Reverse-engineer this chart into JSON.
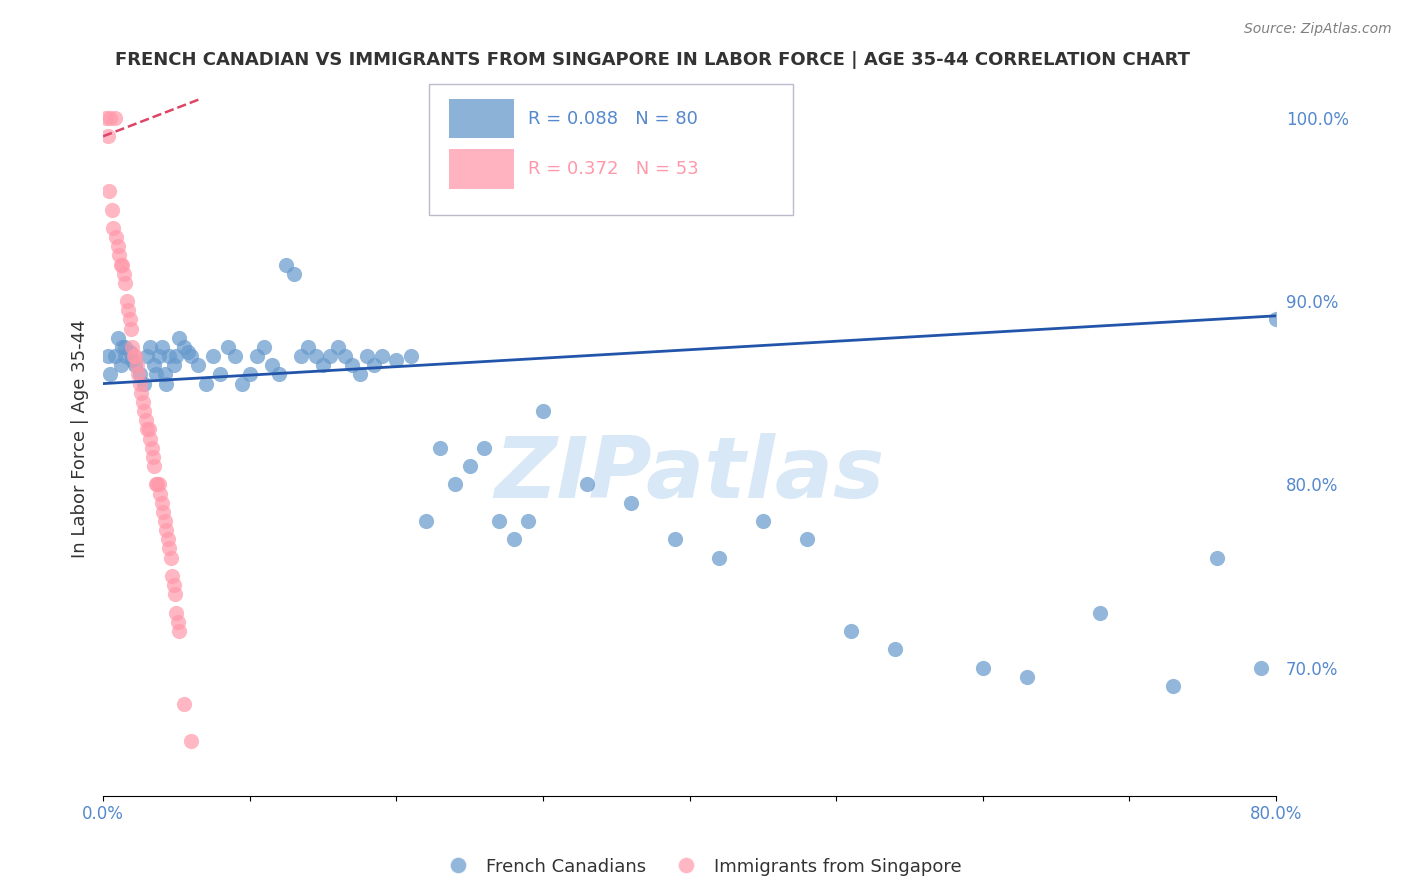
{
  "title": "FRENCH CANADIAN VS IMMIGRANTS FROM SINGAPORE IN LABOR FORCE | AGE 35-44 CORRELATION CHART",
  "source": "Source: ZipAtlas.com",
  "ylabel_left": "In Labor Force | Age 35-44",
  "xlim": [
    0.0,
    0.8
  ],
  "ylim": [
    0.63,
    1.02
  ],
  "xticks": [
    0.0,
    0.1,
    0.2,
    0.3,
    0.4,
    0.5,
    0.6,
    0.7,
    0.8
  ],
  "yticks_right": [
    0.7,
    0.8,
    0.9,
    1.0
  ],
  "yticklabels_right": [
    "70.0%",
    "80.0%",
    "90.0%",
    "100.0%"
  ],
  "legend_blue_R": "R = 0.088",
  "legend_blue_N": "N = 80",
  "legend_pink_R": "R = 0.372",
  "legend_pink_N": "N = 53",
  "blue_color": "#6699CC",
  "pink_color": "#FF99AA",
  "blue_line_color": "#2255AA",
  "pink_line_color": "#DD4466",
  "grid_color": "#CCCCDD",
  "watermark": "ZIPatlas",
  "watermark_color": "#AACCEE",
  "title_color": "#333333",
  "axis_label_color": "#333333",
  "right_axis_color": "#5588CC",
  "blue_points_x": [
    0.003,
    0.005,
    0.008,
    0.01,
    0.012,
    0.013,
    0.015,
    0.015,
    0.018,
    0.02,
    0.022,
    0.025,
    0.028,
    0.03,
    0.032,
    0.035,
    0.036,
    0.038,
    0.04,
    0.042,
    0.043,
    0.045,
    0.048,
    0.05,
    0.052,
    0.055,
    0.058,
    0.06,
    0.065,
    0.07,
    0.075,
    0.08,
    0.085,
    0.09,
    0.095,
    0.1,
    0.105,
    0.11,
    0.115,
    0.12,
    0.125,
    0.13,
    0.135,
    0.14,
    0.145,
    0.15,
    0.155,
    0.16,
    0.165,
    0.17,
    0.175,
    0.18,
    0.185,
    0.19,
    0.2,
    0.21,
    0.22,
    0.23,
    0.24,
    0.25,
    0.26,
    0.27,
    0.28,
    0.29,
    0.3,
    0.33,
    0.36,
    0.39,
    0.42,
    0.45,
    0.48,
    0.51,
    0.54,
    0.6,
    0.63,
    0.68,
    0.73,
    0.76,
    0.79,
    0.8
  ],
  "blue_points_y": [
    0.87,
    0.86,
    0.87,
    0.88,
    0.865,
    0.875,
    0.87,
    0.875,
    0.872,
    0.868,
    0.865,
    0.86,
    0.855,
    0.87,
    0.875,
    0.865,
    0.86,
    0.87,
    0.875,
    0.86,
    0.855,
    0.87,
    0.865,
    0.87,
    0.88,
    0.875,
    0.872,
    0.87,
    0.865,
    0.855,
    0.87,
    0.86,
    0.875,
    0.87,
    0.855,
    0.86,
    0.87,
    0.875,
    0.865,
    0.86,
    0.92,
    0.915,
    0.87,
    0.875,
    0.87,
    0.865,
    0.87,
    0.875,
    0.87,
    0.865,
    0.86,
    0.87,
    0.865,
    0.87,
    0.868,
    0.87,
    0.78,
    0.82,
    0.8,
    0.81,
    0.82,
    0.78,
    0.77,
    0.78,
    0.84,
    0.8,
    0.79,
    0.77,
    0.76,
    0.78,
    0.77,
    0.72,
    0.71,
    0.7,
    0.695,
    0.73,
    0.69,
    0.76,
    0.7,
    0.89
  ],
  "pink_points_x": [
    0.002,
    0.003,
    0.004,
    0.005,
    0.006,
    0.007,
    0.008,
    0.009,
    0.01,
    0.011,
    0.012,
    0.013,
    0.014,
    0.015,
    0.016,
    0.017,
    0.018,
    0.019,
    0.02,
    0.021,
    0.022,
    0.023,
    0.024,
    0.025,
    0.026,
    0.027,
    0.028,
    0.029,
    0.03,
    0.031,
    0.032,
    0.033,
    0.034,
    0.035,
    0.036,
    0.037,
    0.038,
    0.039,
    0.04,
    0.041,
    0.042,
    0.043,
    0.044,
    0.045,
    0.046,
    0.047,
    0.048,
    0.049,
    0.05,
    0.051,
    0.052,
    0.055,
    0.06
  ],
  "pink_points_y": [
    1.0,
    0.99,
    0.96,
    1.0,
    0.95,
    0.94,
    1.0,
    0.935,
    0.93,
    0.925,
    0.92,
    0.92,
    0.915,
    0.91,
    0.9,
    0.895,
    0.89,
    0.885,
    0.875,
    0.87,
    0.87,
    0.865,
    0.86,
    0.855,
    0.85,
    0.845,
    0.84,
    0.835,
    0.83,
    0.83,
    0.825,
    0.82,
    0.815,
    0.81,
    0.8,
    0.8,
    0.8,
    0.795,
    0.79,
    0.785,
    0.78,
    0.775,
    0.77,
    0.765,
    0.76,
    0.75,
    0.745,
    0.74,
    0.73,
    0.725,
    0.72,
    0.68,
    0.66
  ],
  "blue_trend_x": [
    0.0,
    0.8
  ],
  "blue_trend_y": [
    0.855,
    0.892
  ],
  "pink_trend_x": [
    0.0,
    0.065
  ],
  "pink_trend_y": [
    0.99,
    1.01
  ]
}
